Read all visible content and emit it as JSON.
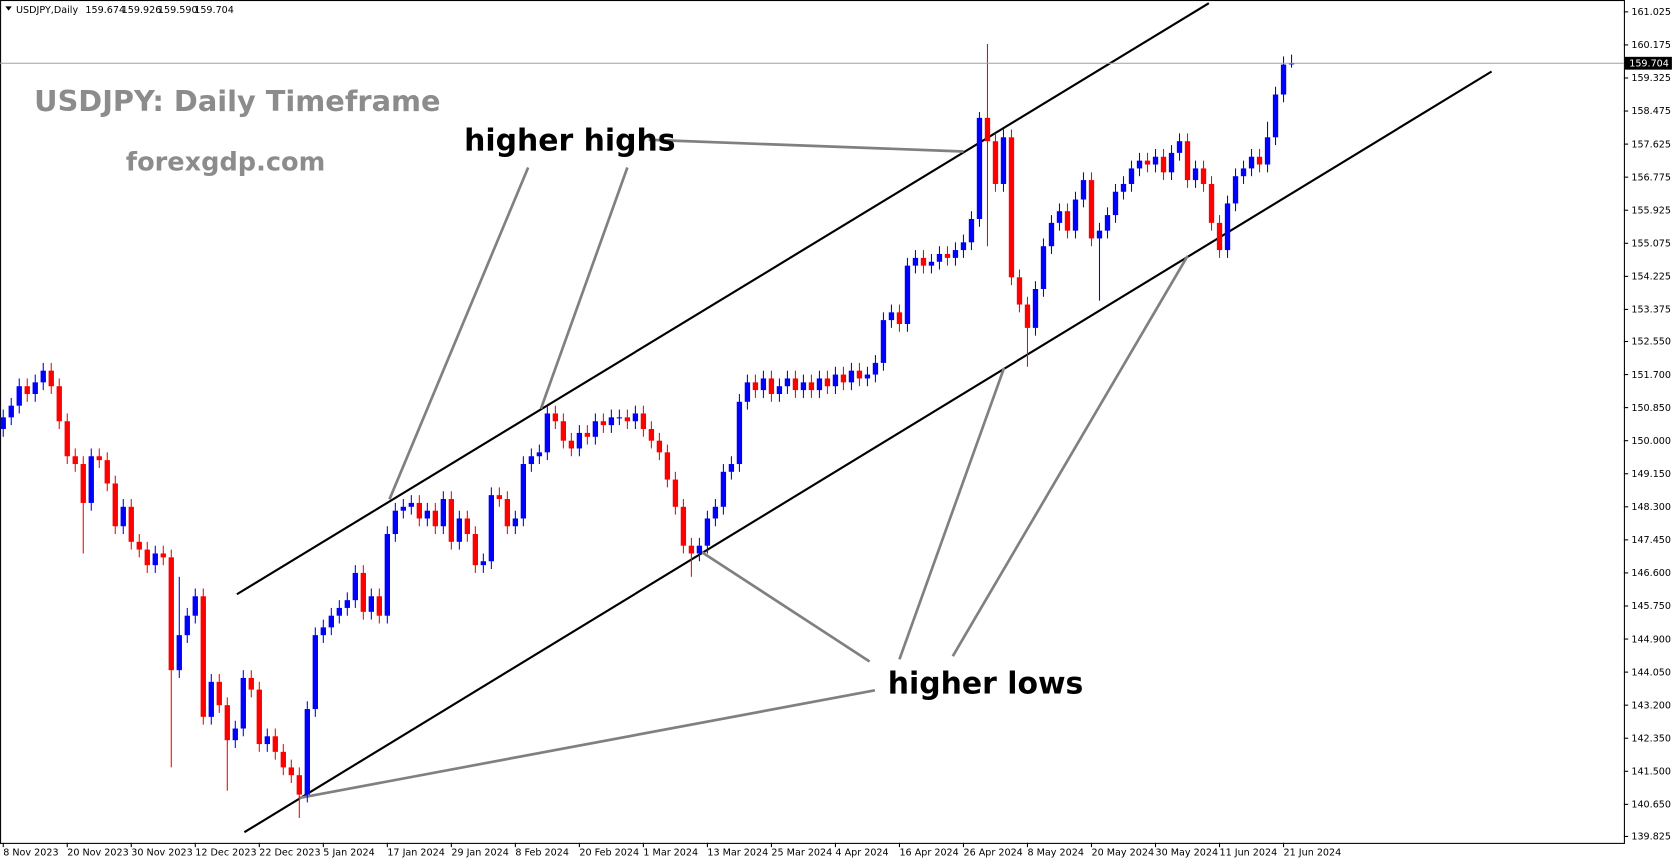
{
  "header": {
    "symbol": "USDJPY,Daily",
    "ohlc": [
      "159.674",
      "159.926",
      "159.590",
      "159.704"
    ]
  },
  "chart_data": {
    "type": "candlestick",
    "title": "USDJPY: Daily Timeframe",
    "subtitle": "forexgdp.com",
    "annotations": [
      "higher highs",
      "higher lows"
    ],
    "categories": [
      "8 Nov 2023",
      null,
      null,
      null,
      null,
      null,
      null,
      null,
      "20 Nov 2023",
      null,
      null,
      null,
      null,
      null,
      null,
      null,
      "30 Nov 2023",
      null,
      null,
      null,
      null,
      null,
      null,
      null,
      "12 Dec 2023",
      null,
      null,
      null,
      null,
      null,
      null,
      null,
      "22 Dec 2023",
      null,
      null,
      null,
      null,
      null,
      null,
      null,
      "5 Jan 2024",
      null,
      null,
      null,
      null,
      null,
      null,
      null,
      "17 Jan 2024",
      null,
      null,
      null,
      null,
      null,
      null,
      null,
      "29 Jan 2024",
      null,
      null,
      null,
      null,
      null,
      null,
      null,
      "8 Feb 2024",
      null,
      null,
      null,
      null,
      null,
      null,
      null,
      "20 Feb 2024",
      null,
      null,
      null,
      null,
      null,
      null,
      null,
      "1 Mar 2024",
      null,
      null,
      null,
      null,
      null,
      null,
      null,
      "13 Mar 2024",
      null,
      null,
      null,
      null,
      null,
      null,
      null,
      "25 Mar 2024",
      null,
      null,
      null,
      null,
      null,
      null,
      null,
      "4 Apr 2024",
      null,
      null,
      null,
      null,
      null,
      null,
      null,
      "16 Apr 2024",
      null,
      null,
      null,
      null,
      null,
      null,
      null,
      "26 Apr 2024",
      null,
      null,
      null,
      null,
      null,
      null,
      null,
      "8 May 2024",
      null,
      null,
      null,
      null,
      null,
      null,
      null,
      "20 May 2024",
      null,
      null,
      null,
      null,
      null,
      null,
      null,
      "30 May 2024",
      null,
      null,
      null,
      null,
      null,
      null,
      null,
      "11 Jun 2024",
      null,
      null,
      null,
      null,
      null,
      null,
      null,
      "21 Jun 2024",
      null
    ],
    "open": [
      150.3,
      150.6,
      150.9,
      151.4,
      151.2,
      151.5,
      151.8,
      151.4,
      150.5,
      149.6,
      149.4,
      148.4,
      149.6,
      149.5,
      148.9,
      147.8,
      148.3,
      147.4,
      147.2,
      146.8,
      147.1,
      147.0,
      144.1,
      145.0,
      145.5,
      146.0,
      142.9,
      143.8,
      143.2,
      142.3,
      142.6,
      143.9,
      143.6,
      142.2,
      142.4,
      142.0,
      141.6,
      141.4,
      140.9,
      143.1,
      145.0,
      145.2,
      145.5,
      145.7,
      145.9,
      146.6,
      145.6,
      146.0,
      145.5,
      147.6,
      148.2,
      148.3,
      148.4,
      148.0,
      148.2,
      147.8,
      148.5,
      147.4,
      148.0,
      147.6,
      146.8,
      146.9,
      148.6,
      148.5,
      147.8,
      148.0,
      149.4,
      149.6,
      149.7,
      150.7,
      150.5,
      150.0,
      149.8,
      150.2,
      150.1,
      150.5,
      150.4,
      150.6,
      150.6,
      150.5,
      150.7,
      150.3,
      150.0,
      149.7,
      149.0,
      148.3,
      147.3,
      147.1,
      147.3,
      148.0,
      148.3,
      149.2,
      149.4,
      151.0,
      151.5,
      151.3,
      151.6,
      151.2,
      151.4,
      151.6,
      151.3,
      151.5,
      151.3,
      151.6,
      151.4,
      151.7,
      151.5,
      151.8,
      151.6,
      151.7,
      152.0,
      153.1,
      153.3,
      153.0,
      154.5,
      154.7,
      154.5,
      154.6,
      154.8,
      154.7,
      154.9,
      155.1,
      155.7,
      158.3,
      157.7,
      156.6,
      157.8,
      154.2,
      153.5,
      152.9,
      153.9,
      155.0,
      155.6,
      155.9,
      155.4,
      156.2,
      156.7,
      155.2,
      155.4,
      155.8,
      156.4,
      156.6,
      157.0,
      157.2,
      157.1,
      157.3,
      156.9,
      157.4,
      157.7,
      156.7,
      157.0,
      156.6,
      155.6,
      154.9,
      156.1,
      156.8,
      157.0,
      157.3,
      157.1,
      157.8,
      158.9,
      159.674
    ],
    "high": [
      150.8,
      151.1,
      151.6,
      151.6,
      151.7,
      152.0,
      152.0,
      151.6,
      150.7,
      149.8,
      149.6,
      149.8,
      149.8,
      149.7,
      149.1,
      148.5,
      148.5,
      147.6,
      147.4,
      147.3,
      147.3,
      147.2,
      146.5,
      145.7,
      146.2,
      146.2,
      144.0,
      144.0,
      143.4,
      142.8,
      144.1,
      144.1,
      143.8,
      142.6,
      142.6,
      142.2,
      141.8,
      141.6,
      143.3,
      145.2,
      145.4,
      145.7,
      145.9,
      146.1,
      146.8,
      146.8,
      146.2,
      146.2,
      147.8,
      148.4,
      148.5,
      148.6,
      148.6,
      148.4,
      148.4,
      148.7,
      148.7,
      148.2,
      148.2,
      147.8,
      147.1,
      148.8,
      148.8,
      148.7,
      148.2,
      149.6,
      149.8,
      149.9,
      150.9,
      150.9,
      150.7,
      150.2,
      150.4,
      150.4,
      150.7,
      150.7,
      150.8,
      150.8,
      150.8,
      150.9,
      150.9,
      150.5,
      150.2,
      149.9,
      149.2,
      148.5,
      147.5,
      147.5,
      148.2,
      148.5,
      149.4,
      149.6,
      151.2,
      151.7,
      151.7,
      151.8,
      151.8,
      151.6,
      151.8,
      151.8,
      151.7,
      151.7,
      151.8,
      151.8,
      151.9,
      151.9,
      152.0,
      152.0,
      151.9,
      152.2,
      153.3,
      153.5,
      153.5,
      154.7,
      154.9,
      154.9,
      154.8,
      155.0,
      155.0,
      155.1,
      155.3,
      155.9,
      158.45,
      160.2,
      157.9,
      158.0,
      158.0,
      154.4,
      153.7,
      154.1,
      155.2,
      155.8,
      156.1,
      156.1,
      156.4,
      156.9,
      156.9,
      155.6,
      156.0,
      156.6,
      156.8,
      157.2,
      157.4,
      157.4,
      157.5,
      157.5,
      157.6,
      157.9,
      157.9,
      157.2,
      157.2,
      156.8,
      155.8,
      156.3,
      157.0,
      157.2,
      157.5,
      157.5,
      158.2,
      159.1,
      159.88,
      159.926
    ],
    "low": [
      150.1,
      150.4,
      150.7,
      151.0,
      151.0,
      151.3,
      151.2,
      150.3,
      149.4,
      149.2,
      147.1,
      148.2,
      149.3,
      148.7,
      147.6,
      147.6,
      147.2,
      147.0,
      146.6,
      146.6,
      146.8,
      141.6,
      143.9,
      144.8,
      145.3,
      142.7,
      142.7,
      143.0,
      141.0,
      142.1,
      142.4,
      143.4,
      142.0,
      142.0,
      141.8,
      141.4,
      141.2,
      140.3,
      140.7,
      142.9,
      144.8,
      145.0,
      145.3,
      145.5,
      145.7,
      145.4,
      145.4,
      145.3,
      145.3,
      147.4,
      148.0,
      148.1,
      147.8,
      147.8,
      147.6,
      147.6,
      147.2,
      147.2,
      147.4,
      146.6,
      146.6,
      146.7,
      148.3,
      147.6,
      147.6,
      147.8,
      149.2,
      149.4,
      149.5,
      150.3,
      149.8,
      149.6,
      149.6,
      149.9,
      149.9,
      150.2,
      150.2,
      150.4,
      150.3,
      150.3,
      150.1,
      149.8,
      149.5,
      148.8,
      148.1,
      147.1,
      146.5,
      146.9,
      147.1,
      147.8,
      148.1,
      149.0,
      149.2,
      150.8,
      151.1,
      151.1,
      151.0,
      151.0,
      151.2,
      151.1,
      151.1,
      151.1,
      151.1,
      151.2,
      151.2,
      151.3,
      151.3,
      151.4,
      151.4,
      151.5,
      151.8,
      152.9,
      152.8,
      152.8,
      154.3,
      154.3,
      154.3,
      154.4,
      154.5,
      154.5,
      154.7,
      154.9,
      155.5,
      155.0,
      156.4,
      156.4,
      154.0,
      153.3,
      151.9,
      152.7,
      153.7,
      154.8,
      155.4,
      155.2,
      155.2,
      156.0,
      155.0,
      153.6,
      155.2,
      155.6,
      156.2,
      156.4,
      156.8,
      156.9,
      156.9,
      156.7,
      156.7,
      157.2,
      156.5,
      156.5,
      156.4,
      155.4,
      154.7,
      154.7,
      155.9,
      156.6,
      156.8,
      156.9,
      156.9,
      157.6,
      158.7,
      159.59
    ],
    "close": [
      150.6,
      150.9,
      151.4,
      151.2,
      151.5,
      151.8,
      151.4,
      150.5,
      149.6,
      149.4,
      148.4,
      149.6,
      149.5,
      148.9,
      147.8,
      148.3,
      147.4,
      147.2,
      146.8,
      147.1,
      147.0,
      144.1,
      145.0,
      145.5,
      146.0,
      142.9,
      143.8,
      143.2,
      142.3,
      142.6,
      143.9,
      143.6,
      142.2,
      142.4,
      142.0,
      141.6,
      141.4,
      140.9,
      143.1,
      145.0,
      145.2,
      145.5,
      145.7,
      145.9,
      146.6,
      145.6,
      146.0,
      145.5,
      147.6,
      148.2,
      148.3,
      148.4,
      148.0,
      148.2,
      147.8,
      148.5,
      147.4,
      148.0,
      147.6,
      146.8,
      146.9,
      148.6,
      148.5,
      147.8,
      148.0,
      149.4,
      149.6,
      149.7,
      150.7,
      150.5,
      150.0,
      149.8,
      150.2,
      150.1,
      150.5,
      150.4,
      150.6,
      150.6,
      150.5,
      150.7,
      150.3,
      150.0,
      149.7,
      149.0,
      148.3,
      147.3,
      147.1,
      147.3,
      148.0,
      148.3,
      149.2,
      149.4,
      151.0,
      151.5,
      151.3,
      151.6,
      151.2,
      151.4,
      151.6,
      151.3,
      151.5,
      151.3,
      151.6,
      151.4,
      151.7,
      151.5,
      151.8,
      151.6,
      151.7,
      152.0,
      153.1,
      153.3,
      153.0,
      154.5,
      154.7,
      154.5,
      154.6,
      154.8,
      154.7,
      154.9,
      155.1,
      155.7,
      158.3,
      157.7,
      156.6,
      157.8,
      154.2,
      153.5,
      152.9,
      153.9,
      155.0,
      155.6,
      155.9,
      155.4,
      156.2,
      156.7,
      155.2,
      155.4,
      155.8,
      156.4,
      156.6,
      157.0,
      157.2,
      157.1,
      157.3,
      156.9,
      157.4,
      157.7,
      156.7,
      157.0,
      156.6,
      155.6,
      154.9,
      156.1,
      156.8,
      157.0,
      157.3,
      157.1,
      157.8,
      158.9,
      159.67,
      159.704
    ],
    "up_color": "#0000ff",
    "down_color": "#ff0000",
    "ylim": [
      139.66,
      161.33
    ],
    "yticks": [
      161.025,
      160.175,
      159.325,
      158.475,
      157.625,
      156.775,
      155.925,
      155.075,
      154.225,
      153.375,
      {
        "value": 152.55,
        "label": "152.550"
      },
      {
        "value": 151.7,
        "label": "151.700"
      },
      {
        "value": 150.85,
        "label": "150.850"
      },
      {
        "value": 150,
        "label": "150.000"
      },
      {
        "value": 149.15,
        "label": "149.150"
      },
      {
        "value": 148.3,
        "label": "148.300"
      },
      {
        "value": 147.45,
        "label": "147.450"
      },
      {
        "value": 146.6,
        "label": "146.600"
      },
      {
        "value": 145.75,
        "label": "145.750"
      },
      {
        "value": 144.9,
        "label": "144.900"
      },
      {
        "value": 144.05,
        "label": "144.050"
      },
      {
        "value": 143.2,
        "label": "143.200"
      },
      {
        "value": 142.35,
        "label": "142.350"
      },
      {
        "value": 141.5,
        "label": "141.500"
      },
      {
        "value": 140.65,
        "label": "140.650"
      },
      139.825
    ],
    "current_price": 159.704
  }
}
